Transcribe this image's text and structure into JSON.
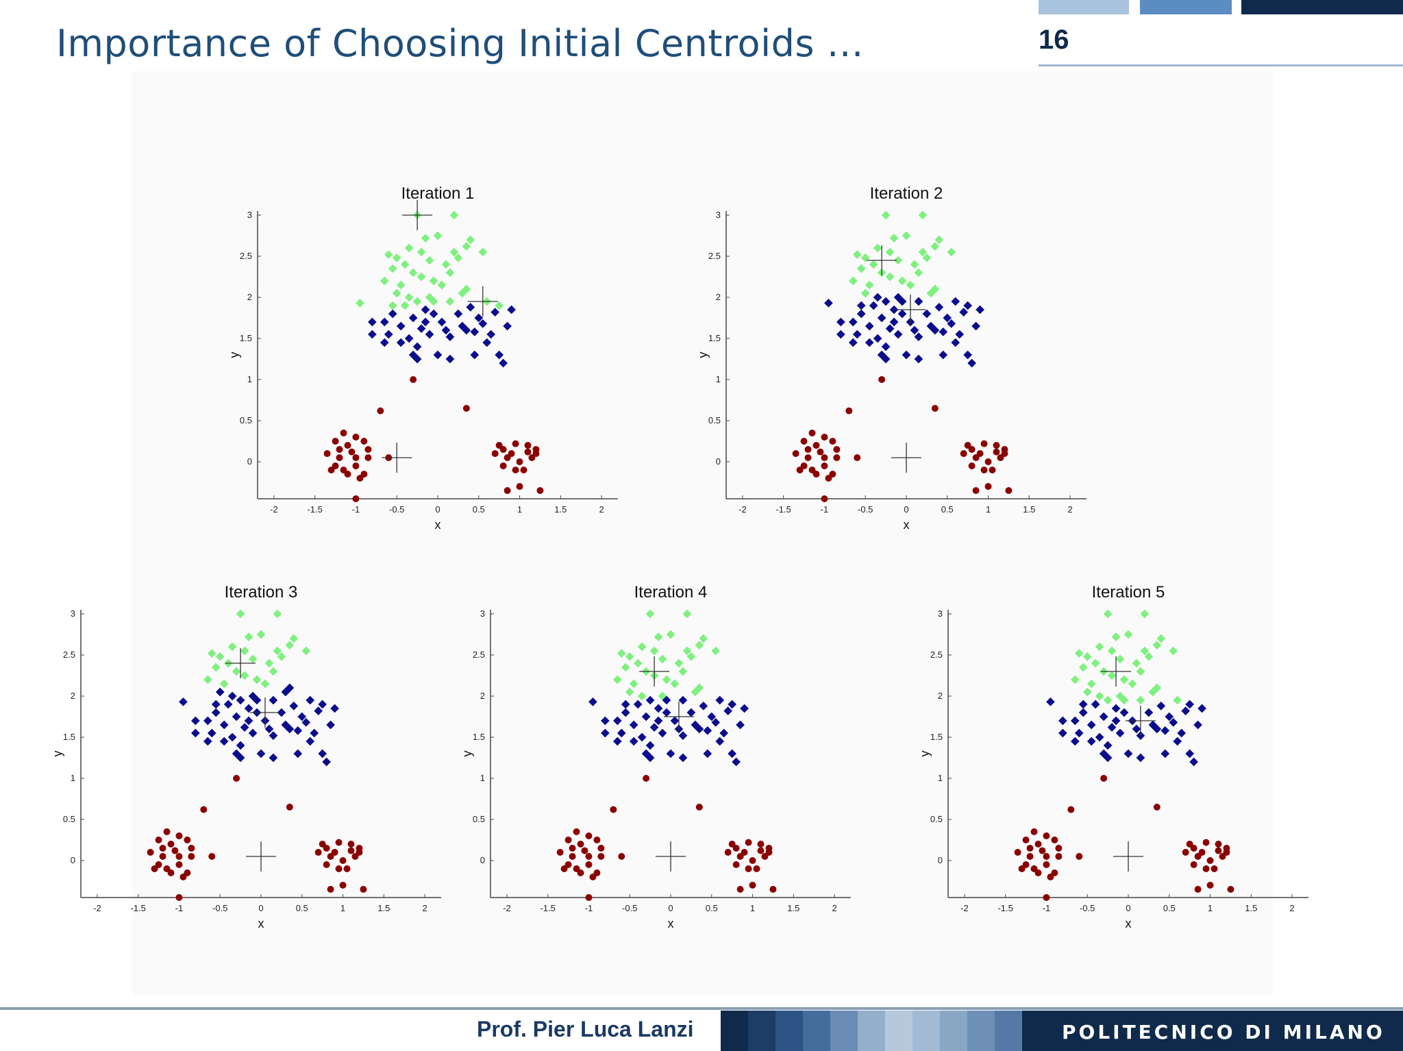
{
  "slide": {
    "title": "Importance of Choosing Initial Centroids …",
    "number": "16",
    "author": "Prof. Pier Luca Lanzi",
    "institution": "POLITECNICO DI MILANO"
  },
  "colors": {
    "title": "#1f4e79",
    "cluster_light": "#7ff07f",
    "cluster_dark": "#0c0c8c",
    "cluster_red": "#8b0000",
    "centroid_marker": "#333333"
  },
  "chart_data": [
    {
      "type": "scatter",
      "title": "Iteration 1",
      "xlabel": "x",
      "ylabel": "y",
      "xlim": [
        -2.2,
        2.2
      ],
      "ylim": [
        -0.45,
        3.05
      ],
      "xticks": [
        "-2",
        "-1.5",
        "-1",
        "-0.5",
        "0",
        "0.5",
        "1",
        "1.5",
        "2"
      ],
      "yticks": [
        "0",
        "0.5",
        "1",
        "1.5",
        "2",
        "2.5",
        "3"
      ],
      "green_split": 1.9,
      "centroids": [
        [
          -0.25,
          3.0
        ],
        [
          0.55,
          1.95
        ],
        [
          -0.5,
          0.05
        ]
      ]
    },
    {
      "type": "scatter",
      "title": "Iteration 2",
      "xlabel": "x",
      "ylabel": "y",
      "xlim": [
        -2.2,
        2.2
      ],
      "ylim": [
        -0.45,
        3.05
      ],
      "xticks": [
        "-2",
        "-1.5",
        "-1",
        "-0.5",
        "0",
        "0.5",
        "1",
        "1.5",
        "2"
      ],
      "yticks": [
        "0",
        "0.5",
        "1",
        "1.5",
        "2",
        "2.5",
        "3"
      ],
      "green_split": 2.05,
      "centroids": [
        [
          -0.3,
          2.45
        ],
        [
          0.05,
          1.85
        ],
        [
          0.0,
          0.05
        ]
      ]
    },
    {
      "type": "scatter",
      "title": "Iteration 3",
      "xlabel": "x",
      "ylabel": "y",
      "xlim": [
        -2.2,
        2.2
      ],
      "ylim": [
        -0.45,
        3.05
      ],
      "xticks": [
        "-2",
        "-1.5",
        "-1",
        "-0.5",
        "0",
        "0.5",
        "1",
        "1.5",
        "2"
      ],
      "yticks": [
        "0",
        "0.5",
        "1",
        "1.5",
        "2",
        "2.5",
        "3"
      ],
      "green_split": 2.15,
      "centroids": [
        [
          -0.25,
          2.4
        ],
        [
          0.05,
          1.8
        ],
        [
          0.0,
          0.05
        ]
      ]
    },
    {
      "type": "scatter",
      "title": "Iteration 4",
      "xlabel": "x",
      "ylabel": "y",
      "xlim": [
        -2.2,
        2.2
      ],
      "ylim": [
        -0.45,
        3.05
      ],
      "xticks": [
        "-2",
        "-1.5",
        "-1",
        "-0.5",
        "0",
        "0.5",
        "1",
        "1.5",
        "2"
      ],
      "yticks": [
        "0",
        "0.5",
        "1",
        "1.5",
        "2",
        "2.5",
        "3"
      ],
      "green_split": 2.0,
      "centroids": [
        [
          -0.2,
          2.3
        ],
        [
          0.1,
          1.75
        ],
        [
          0.0,
          0.05
        ]
      ]
    },
    {
      "type": "scatter",
      "title": "Iteration 5",
      "xlabel": "x",
      "ylabel": "y",
      "xlim": [
        -2.2,
        2.2
      ],
      "ylim": [
        -0.45,
        3.05
      ],
      "xticks": [
        "-2",
        "-1.5",
        "-1",
        "-0.5",
        "0",
        "0.5",
        "1",
        "1.5",
        "2"
      ],
      "yticks": [
        "0",
        "0.5",
        "1",
        "1.5",
        "2",
        "2.5",
        "3"
      ],
      "green_split": 1.95,
      "centroids": [
        [
          -0.15,
          2.3
        ],
        [
          0.15,
          1.7
        ],
        [
          0.0,
          0.05
        ]
      ]
    }
  ],
  "points": {
    "top": [
      [
        -0.25,
        3.0
      ],
      [
        0.2,
        3.0
      ],
      [
        0.0,
        2.75
      ],
      [
        -0.15,
        2.72
      ],
      [
        0.4,
        2.7
      ],
      [
        0.35,
        2.62
      ],
      [
        -0.6,
        2.52
      ],
      [
        -0.5,
        2.48
      ],
      [
        -0.35,
        2.6
      ],
      [
        -0.2,
        2.55
      ],
      [
        -0.4,
        2.4
      ],
      [
        -0.55,
        2.35
      ],
      [
        -0.3,
        2.3
      ],
      [
        -0.65,
        2.2
      ],
      [
        -0.2,
        2.25
      ],
      [
        -0.45,
        2.15
      ],
      [
        -0.1,
        2.45
      ],
      [
        0.1,
        2.4
      ],
      [
        0.25,
        2.48
      ],
      [
        0.15,
        2.3
      ],
      [
        -0.35,
        2.0
      ],
      [
        -0.05,
        2.2
      ],
      [
        -0.25,
        1.95
      ],
      [
        -0.5,
        2.05
      ],
      [
        0.2,
        2.55
      ],
      [
        0.55,
        2.55
      ],
      [
        0.35,
        2.1
      ],
      [
        0.05,
        2.15
      ],
      [
        -0.1,
        2.0
      ],
      [
        -0.4,
        1.9
      ],
      [
        -0.15,
        1.85
      ],
      [
        0.15,
        1.95
      ],
      [
        0.3,
        2.05
      ],
      [
        0.6,
        1.95
      ],
      [
        0.75,
        1.9
      ],
      [
        0.4,
        1.88
      ],
      [
        -0.55,
        1.8
      ],
      [
        -0.3,
        1.75
      ],
      [
        -0.05,
        1.8
      ],
      [
        0.25,
        1.8
      ],
      [
        0.5,
        1.75
      ],
      [
        0.7,
        1.82
      ],
      [
        -0.65,
        1.7
      ],
      [
        -0.45,
        1.65
      ],
      [
        -0.2,
        1.62
      ],
      [
        0.05,
        1.7
      ],
      [
        0.3,
        1.65
      ],
      [
        0.55,
        1.68
      ],
      [
        0.9,
        1.85
      ],
      [
        -0.6,
        1.55
      ],
      [
        -0.35,
        1.5
      ],
      [
        -0.1,
        1.55
      ],
      [
        0.15,
        1.52
      ],
      [
        0.45,
        1.58
      ],
      [
        0.85,
        1.65
      ],
      [
        -0.45,
        1.45
      ],
      [
        -0.25,
        1.4
      ],
      [
        0.6,
        1.45
      ],
      [
        0.35,
        1.6
      ],
      [
        -0.8,
        1.55
      ],
      [
        -0.65,
        1.45
      ],
      [
        -0.3,
        1.3
      ],
      [
        0.0,
        1.3
      ],
      [
        -0.25,
        1.25
      ],
      [
        0.45,
        1.3
      ],
      [
        0.15,
        1.25
      ],
      [
        0.8,
        1.2
      ],
      [
        0.1,
        1.6
      ],
      [
        -0.15,
        1.7
      ],
      [
        -0.8,
        1.7
      ],
      [
        -0.95,
        1.93
      ],
      [
        0.75,
        1.3
      ],
      [
        0.65,
        1.55
      ],
      [
        -0.55,
        1.9
      ],
      [
        -0.05,
        1.95
      ]
    ],
    "left": [
      [
        -1.0,
        -0.45
      ],
      [
        -0.7,
        0.62
      ],
      [
        -1.15,
        0.35
      ],
      [
        -1.25,
        0.25
      ],
      [
        -1.0,
        0.3
      ],
      [
        -1.1,
        0.2
      ],
      [
        -1.35,
        0.1
      ],
      [
        -1.2,
        0.05
      ],
      [
        -1.0,
        0.05
      ],
      [
        -0.85,
        0.05
      ],
      [
        -1.25,
        -0.05
      ],
      [
        -1.15,
        -0.1
      ],
      [
        -1.0,
        -0.05
      ],
      [
        -0.9,
        -0.15
      ],
      [
        -1.3,
        -0.1
      ],
      [
        -0.85,
        0.15
      ],
      [
        -0.95,
        -0.2
      ],
      [
        -1.1,
        -0.15
      ],
      [
        -1.2,
        0.15
      ],
      [
        -0.6,
        0.05
      ],
      [
        -1.05,
        0.12
      ],
      [
        -0.9,
        0.25
      ]
    ],
    "right": [
      [
        0.75,
        0.2
      ],
      [
        0.95,
        0.22
      ],
      [
        1.1,
        0.2
      ],
      [
        1.2,
        0.15
      ],
      [
        1.1,
        0.12
      ],
      [
        0.9,
        0.1
      ],
      [
        0.7,
        0.1
      ],
      [
        0.85,
        0.05
      ],
      [
        1.0,
        0.0
      ],
      [
        1.15,
        0.05
      ],
      [
        0.8,
        -0.05
      ],
      [
        0.95,
        -0.1
      ],
      [
        1.05,
        -0.1
      ],
      [
        1.25,
        -0.35
      ],
      [
        1.0,
        -0.3
      ],
      [
        0.85,
        -0.35
      ],
      [
        1.2,
        0.1
      ],
      [
        0.8,
        0.15
      ]
    ],
    "outliers": [
      [
        -0.3,
        1.0
      ],
      [
        0.35,
        0.65
      ]
    ]
  }
}
